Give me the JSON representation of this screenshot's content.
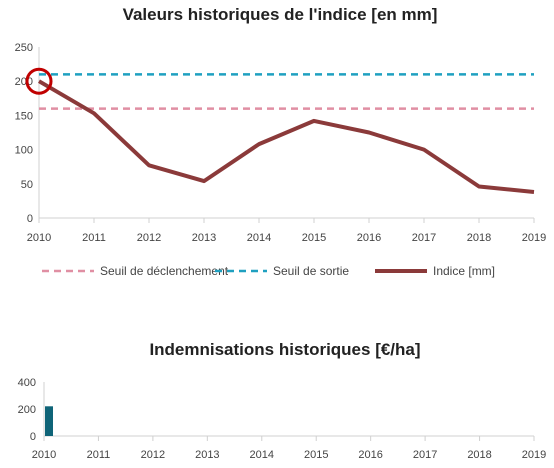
{
  "chart_data": [
    {
      "type": "line",
      "title": "Valeurs historiques de l'indice [en mm]",
      "x": [
        2010,
        2011,
        2012,
        2013,
        2014,
        2015,
        2016,
        2017,
        2018,
        2019
      ],
      "ylim": [
        0,
        250
      ],
      "yticks": [
        0,
        50,
        100,
        150,
        200,
        250
      ],
      "grid": false,
      "legend_position": "bottom",
      "series": [
        {
          "name": "Seuil de déclenchement",
          "style": "dashed",
          "color": "#e08fa3",
          "values": [
            160,
            160,
            160,
            160,
            160,
            160,
            160,
            160,
            160,
            160
          ]
        },
        {
          "name": "Seuil de sortie",
          "style": "dashed",
          "color": "#1fa0c0",
          "values": [
            210,
            210,
            210,
            210,
            210,
            210,
            210,
            210,
            210,
            210
          ]
        },
        {
          "name": "Indice [mm]",
          "style": "solid",
          "color": "#8b3a3a",
          "values": [
            200,
            153,
            77,
            54,
            108,
            142,
            125,
            100,
            46,
            38
          ]
        }
      ],
      "highlight": {
        "x": 2010,
        "y": 200,
        "color": "#c00000"
      }
    },
    {
      "type": "bar",
      "title": "Indemnisations historiques [€/ha]",
      "categories": [
        2010,
        2011,
        2012,
        2013,
        2014,
        2015,
        2016,
        2017,
        2018,
        2019
      ],
      "values": [
        220,
        0,
        0,
        0,
        0,
        0,
        0,
        0,
        0,
        0
      ],
      "ylim": [
        0,
        400
      ],
      "yticks": [
        0,
        200,
        400
      ],
      "color": "#0f6478",
      "grid": false
    }
  ]
}
